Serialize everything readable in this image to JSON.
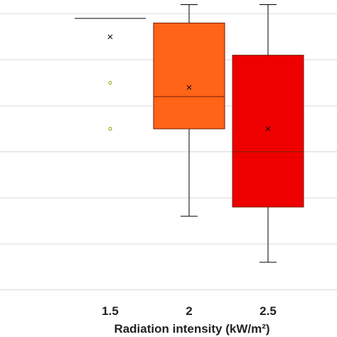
{
  "chart_data": {
    "type": "box",
    "xlabel": "Radiation intensity (kW/m²)",
    "categories": [
      "1.5",
      "2",
      "2.5"
    ],
    "ylim": [
      -0.5,
      6.3
    ],
    "grid": true,
    "legend": "none",
    "series": [
      {
        "category": "1.5",
        "min": 5.9,
        "q1": 5.9,
        "median": 5.9,
        "q3": 5.9,
        "max": 5.9,
        "mean": 5.5,
        "outliers": [
          4.5,
          3.5
        ],
        "color": "#9a9a00"
      },
      {
        "category": "2",
        "min": 1.6,
        "q1": 3.5,
        "median": 4.2,
        "q3": 5.8,
        "max": 6.2,
        "mean": 4.4,
        "outliers": [],
        "color": "#ff6418"
      },
      {
        "category": "2.5",
        "min": 0.6,
        "q1": 1.8,
        "median": 3.0,
        "q3": 5.1,
        "max": 6.2,
        "mean": 3.5,
        "outliers": [],
        "color": "#ee0000"
      }
    ]
  }
}
